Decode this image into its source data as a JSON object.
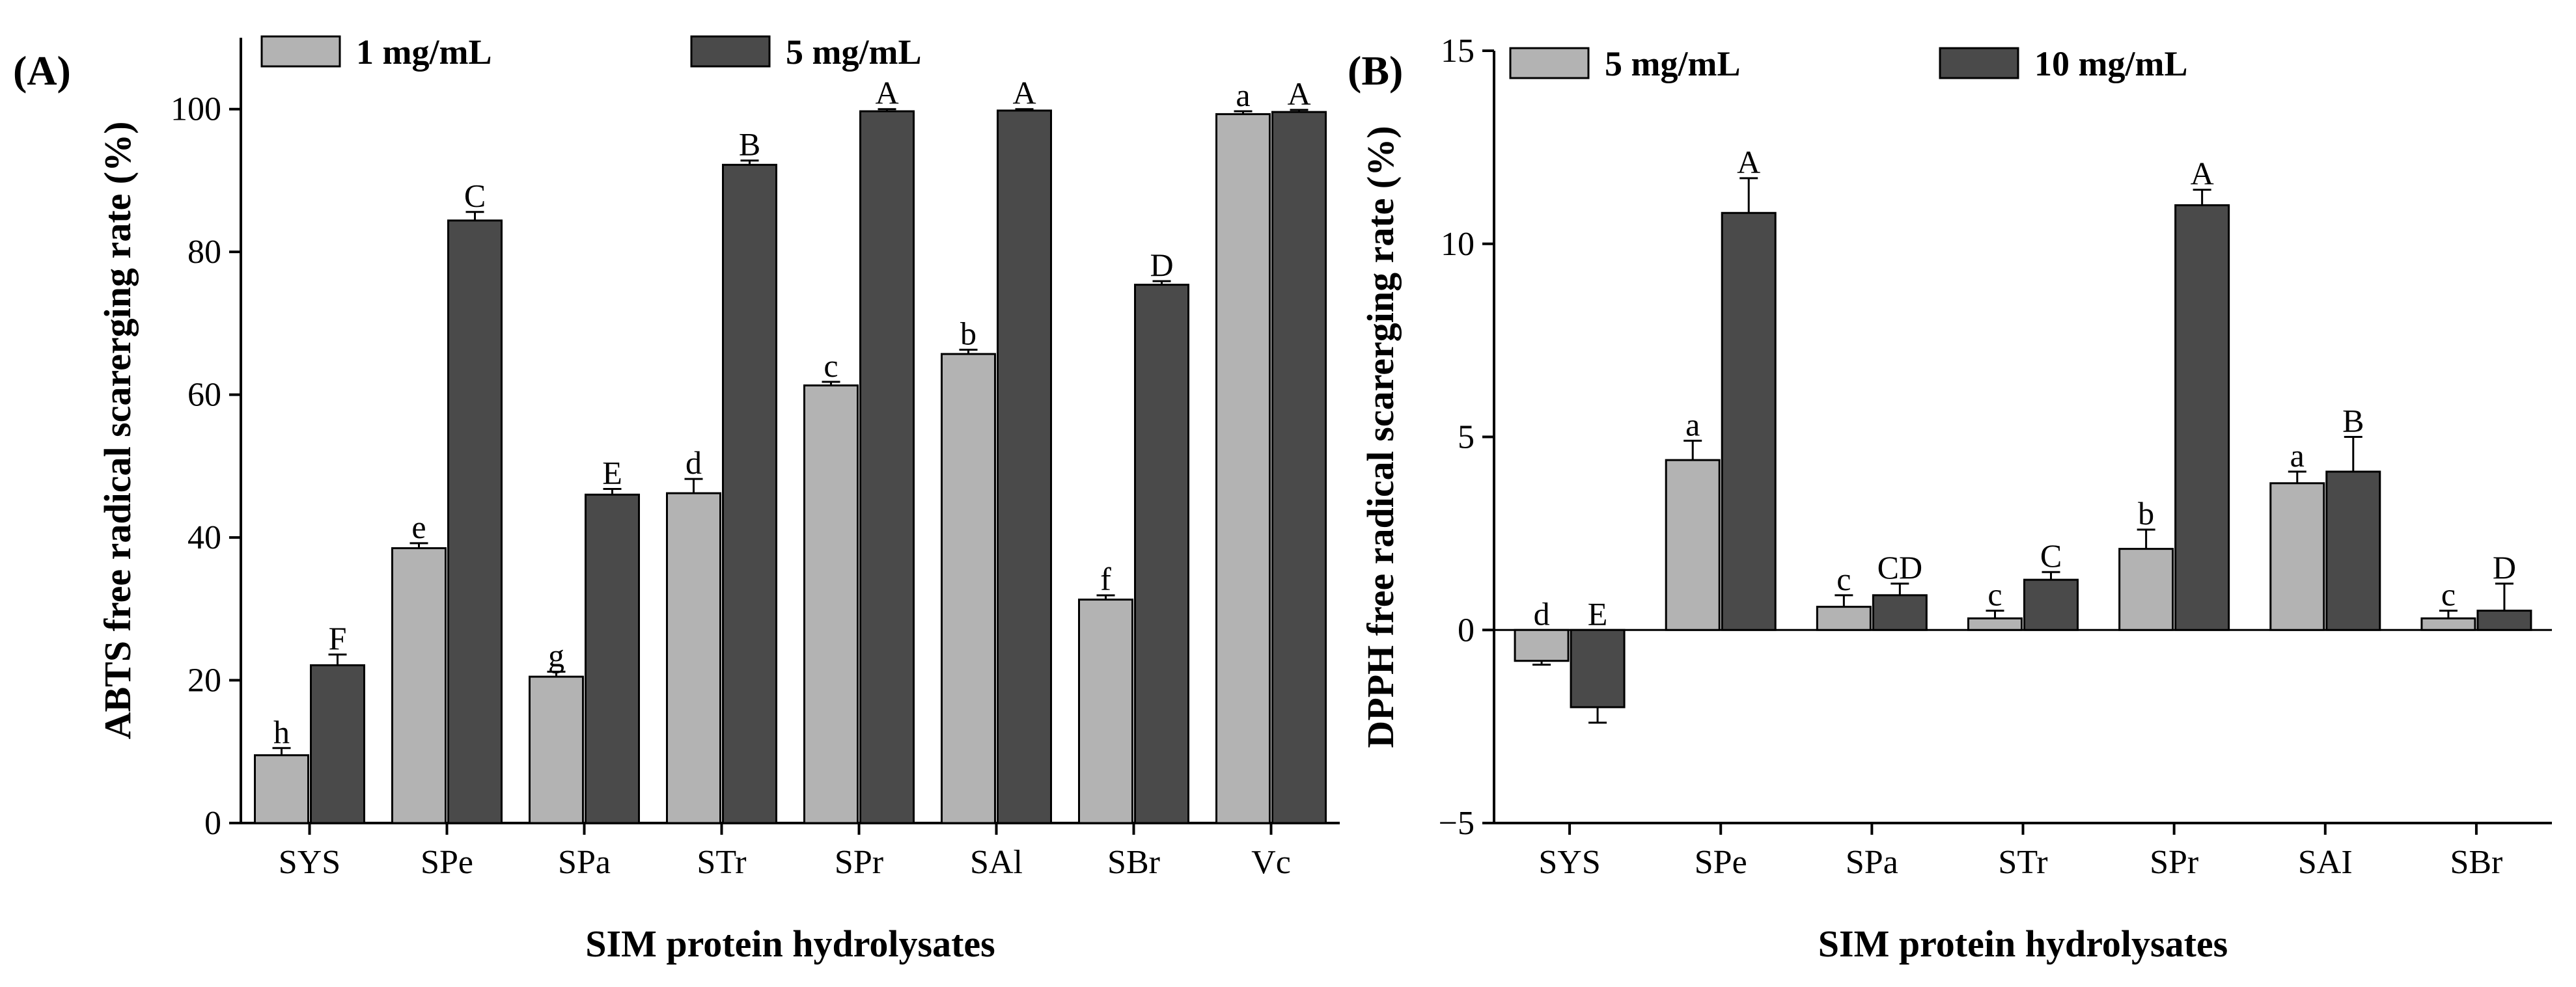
{
  "chart_data": [
    {
      "type": "bar",
      "panel_label": "(A)",
      "categories": [
        "SYS",
        "SPe",
        "SPa",
        "STr",
        "SPr",
        "SAl",
        "SBr",
        "Vc"
      ],
      "series": [
        {
          "name": "1 mg/mL",
          "color": "#b3b3b3",
          "values": [
            9.5,
            38.5,
            20.5,
            46.2,
            61.3,
            65.7,
            31.3,
            99.3
          ],
          "errors": [
            1.0,
            0.7,
            0.7,
            2.0,
            0.5,
            0.6,
            0.6,
            0.4
          ],
          "labels": [
            "h",
            "e",
            "g",
            "d",
            "c",
            "b",
            "f",
            "a"
          ]
        },
        {
          "name": "5 mg/mL",
          "color": "#4a4a4a",
          "values": [
            22.1,
            84.4,
            46.0,
            92.2,
            99.7,
            99.8,
            75.4,
            99.6
          ],
          "errors": [
            1.5,
            1.2,
            0.8,
            0.6,
            0.3,
            0.2,
            0.5,
            0.3
          ],
          "labels": [
            "F",
            "C",
            "E",
            "B",
            "A",
            "A",
            "D",
            "A"
          ]
        }
      ],
      "xlabel": "SIM protein hydrolysates",
      "ylabel": "ABTS free radical scarerging rate (%)",
      "ylim": [
        0,
        110
      ],
      "yticks": [
        0,
        20,
        40,
        60,
        80,
        100
      ],
      "legend": "top-left",
      "grid": false
    },
    {
      "type": "bar",
      "panel_label": "(B)",
      "categories": [
        "SYS",
        "SPe",
        "SPa",
        "STr",
        "SPr",
        "SAI",
        "SBr"
      ],
      "series": [
        {
          "name": "5 mg/mL",
          "color": "#b3b3b3",
          "values": [
            -0.8,
            4.4,
            0.6,
            0.3,
            2.1,
            3.8,
            0.3
          ],
          "errors": [
            0.1,
            0.5,
            0.3,
            0.2,
            0.5,
            0.3,
            0.2
          ],
          "labels": [
            "d",
            "a",
            "c",
            "c",
            "b",
            "a",
            "c"
          ]
        },
        {
          "name": "10 mg/mL",
          "color": "#4a4a4a",
          "values": [
            -2.0,
            10.8,
            0.9,
            1.3,
            11.0,
            4.1,
            0.5
          ],
          "errors": [
            0.4,
            0.9,
            0.3,
            0.2,
            0.4,
            0.9,
            0.7
          ],
          "labels": [
            "E",
            "A",
            "CD",
            "C",
            "A",
            "B",
            "D"
          ]
        }
      ],
      "xlabel": "SIM protein hydrolysates",
      "ylabel": "DPPH free radical scarerging rate (%)",
      "ylim": [
        -5,
        15
      ],
      "yticks": [
        -5,
        0,
        5,
        10,
        15
      ],
      "ytick_labels": [
        "−5",
        "0",
        "5",
        "10",
        "15"
      ],
      "legend": "top-left",
      "grid": false
    }
  ]
}
